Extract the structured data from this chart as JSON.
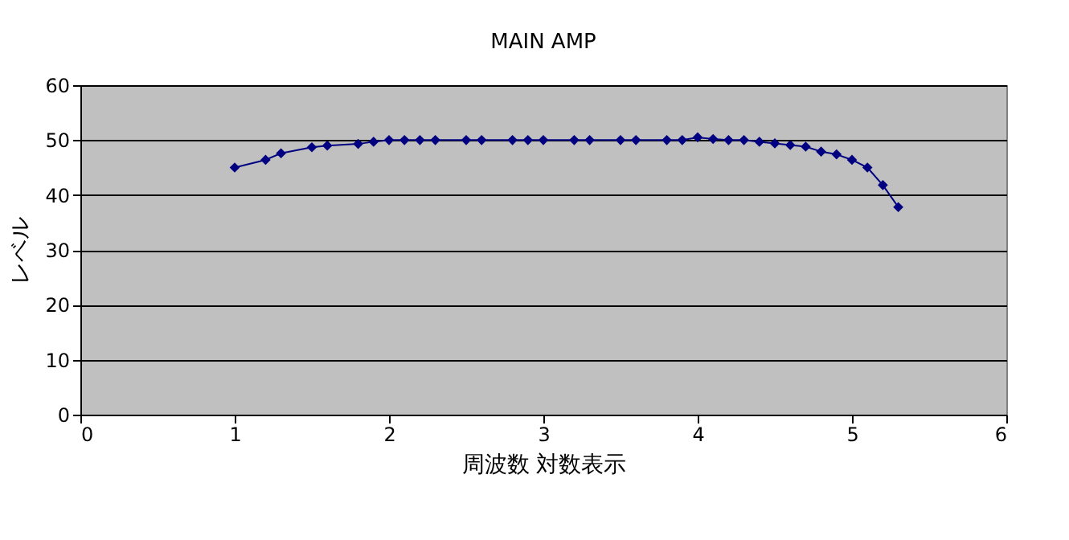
{
  "chart_data": {
    "type": "line",
    "title": "MAIN AMP",
    "xlabel": "周波数  対数表示",
    "ylabel": "レベル",
    "x": [
      1.0,
      1.2,
      1.3,
      1.5,
      1.6,
      1.8,
      1.9,
      2.0,
      2.1,
      2.2,
      2.3,
      2.5,
      2.6,
      2.8,
      2.9,
      3.0,
      3.2,
      3.3,
      3.5,
      3.6,
      3.8,
      3.9,
      4.0,
      4.1,
      4.2,
      4.3,
      4.4,
      4.5,
      4.6,
      4.7,
      4.8,
      4.9,
      5.0,
      5.1,
      5.2,
      5.3
    ],
    "series": [
      {
        "color": "#000080",
        "values": [
          45.0,
          46.4,
          47.6,
          48.7,
          49.0,
          49.3,
          49.7,
          50,
          50,
          50,
          50,
          50,
          50,
          50,
          50,
          50,
          50,
          50,
          50,
          50,
          50,
          50,
          50.5,
          50.2,
          50,
          50,
          49.7,
          49.4,
          49.1,
          48.8,
          47.9,
          47.4,
          46.4,
          45.0,
          41.8,
          37.8
        ]
      }
    ],
    "xlim": [
      0,
      6
    ],
    "xticks": [
      0,
      1,
      2,
      3,
      4,
      5,
      6
    ],
    "ylim": [
      0,
      60
    ],
    "yticks": [
      0,
      10,
      20,
      30,
      40,
      50,
      60
    ],
    "grid": "y",
    "legend": false,
    "marker": "diamond",
    "line_style": "solid"
  }
}
